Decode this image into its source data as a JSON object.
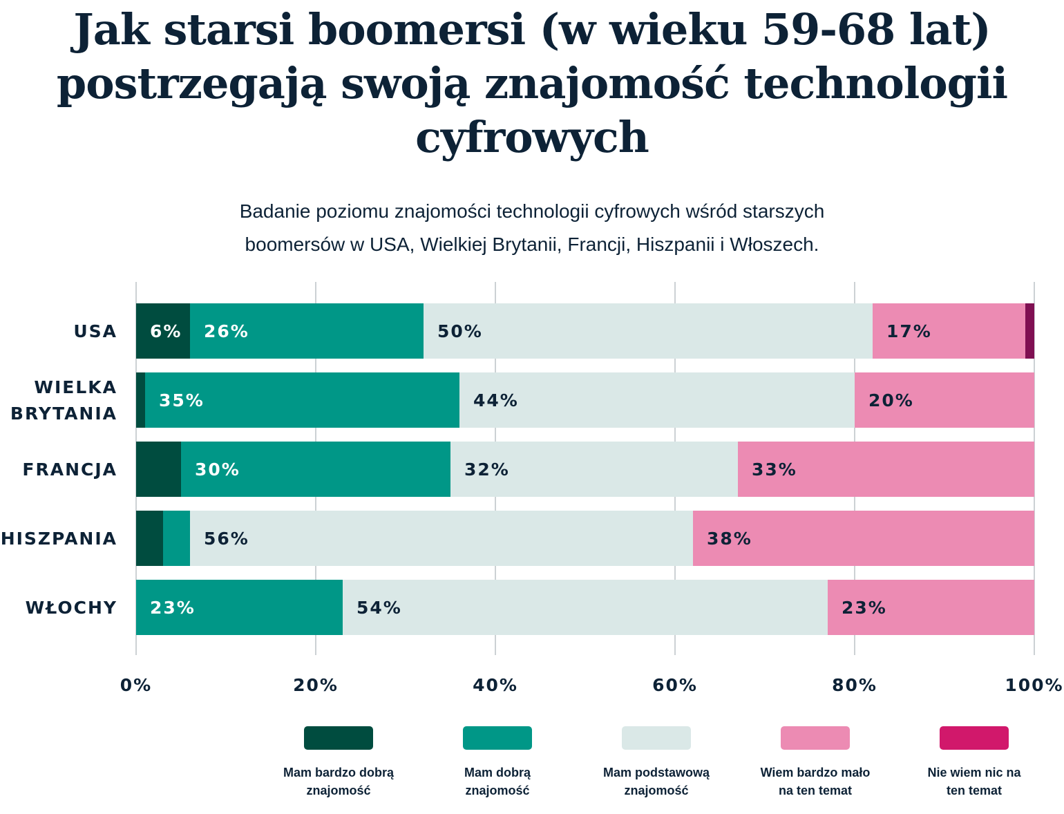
{
  "title": "Jak starsi boomersi (w wieku 59-68 lat) postrzegają swoją znajomość technologii cyfrowych",
  "subtitle_lines": [
    "Badanie poziomu znajomości technologii cyfrowych wśród starszych",
    "boomersów w USA, Wielkiej Brytanii, Francji, Hiszpanii i Włoszech."
  ],
  "chart_data": {
    "type": "bar",
    "orientation": "horizontal",
    "stacked": true,
    "categories": [
      [
        "USA"
      ],
      [
        "WIELKA",
        "BRYTANIA"
      ],
      [
        "FRANCJA"
      ],
      [
        "HISZPANIA"
      ],
      [
        "WŁOCHY"
      ]
    ],
    "series": [
      {
        "name": "Mam bardzo dobrą znajomość",
        "legend_lines": [
          "Mam bardzo dobrą",
          "znajomość"
        ],
        "color": "#004c3f",
        "values": [
          6,
          1,
          5,
          3,
          0
        ],
        "labels": [
          "6%",
          "",
          "",
          "",
          ""
        ]
      },
      {
        "name": "Mam dobrą znajomość",
        "legend_lines": [
          "Mam dobrą",
          "znajomość"
        ],
        "color": "#009787",
        "values": [
          26,
          35,
          30,
          3,
          23
        ],
        "labels": [
          "26%",
          "35%",
          "30%",
          "",
          "23%"
        ]
      },
      {
        "name": "Mam podstawową znajomość",
        "legend_lines": [
          "Mam podstawową",
          "znajomość"
        ],
        "color": "#dae8e7",
        "values": [
          50,
          44,
          32,
          56,
          54
        ],
        "labels": [
          "50%",
          "44%",
          "32%",
          "56%",
          "54%"
        ]
      },
      {
        "name": "Wiem bardzo mało na ten temat",
        "legend_lines": [
          "Wiem bardzo mało",
          "na ten temat"
        ],
        "color": "#ec8bb3",
        "values": [
          17,
          20,
          33,
          38,
          23
        ],
        "labels": [
          "17%",
          "20%",
          "33%",
          "38%",
          "23%"
        ]
      },
      {
        "name": "Nie wiem nic na ten temat",
        "legend_lines": [
          "Nie wiem nic na",
          "ten temat"
        ],
        "color": "#d1186b",
        "bar_color": "#7f1052",
        "values": [
          1,
          0,
          0,
          0,
          0
        ],
        "labels": [
          "",
          "",
          "",
          "",
          ""
        ]
      }
    ],
    "xlim": [
      0,
      100
    ],
    "xticks": [
      "0%",
      "20%",
      "40%",
      "60%",
      "80%",
      "100%"
    ],
    "grid": true,
    "legend_position": "bottom",
    "text_color": "#0d2236",
    "grid_color": "#ccd1d4"
  }
}
